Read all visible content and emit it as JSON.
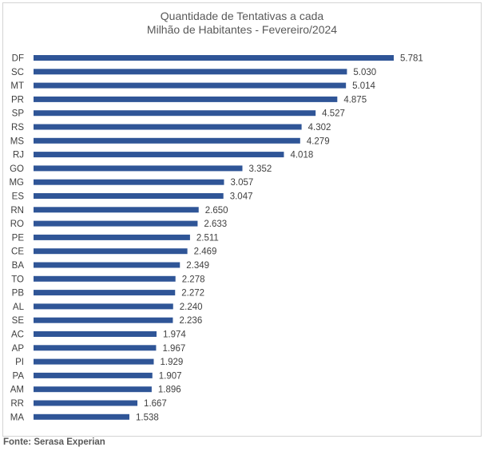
{
  "chart_data": {
    "type": "bar",
    "orientation": "horizontal",
    "title": [
      "Quantidade de Tentativas a cada",
      "Milhão de Habitantes - Fevereiro/2024"
    ],
    "categories": [
      "DF",
      "SC",
      "MT",
      "PR",
      "SP",
      "RS",
      "MS",
      "RJ",
      "GO",
      "MG",
      "ES",
      "RN",
      "RO",
      "PE",
      "CE",
      "BA",
      "TO",
      "PB",
      "AL",
      "SE",
      "AC",
      "AP",
      "PI",
      "PA",
      "AM",
      "RR",
      "MA"
    ],
    "values": [
      5781,
      5030,
      5014,
      4875,
      4527,
      4302,
      4279,
      4018,
      3352,
      3057,
      3047,
      2650,
      2633,
      2511,
      2469,
      2349,
      2278,
      2272,
      2240,
      2236,
      1974,
      1967,
      1929,
      1907,
      1896,
      1667,
      1538
    ],
    "data_labels": [
      "5.781",
      "5.030",
      "5.014",
      "4.875",
      "4.527",
      "4.302",
      "4.279",
      "4.018",
      "3.352",
      "3.057",
      "3.047",
      "2.650",
      "2.633",
      "2.511",
      "2.469",
      "2.349",
      "2.278",
      "2.272",
      "2.240",
      "2.236",
      "1.974",
      "1.967",
      "1.929",
      "1.907",
      "1.896",
      "1.667",
      "1.538"
    ],
    "xlim": [
      0,
      5781
    ],
    "grid": false,
    "legend": "none",
    "bar_color": "#2f5597"
  },
  "source": "Fonte: Serasa Experian"
}
